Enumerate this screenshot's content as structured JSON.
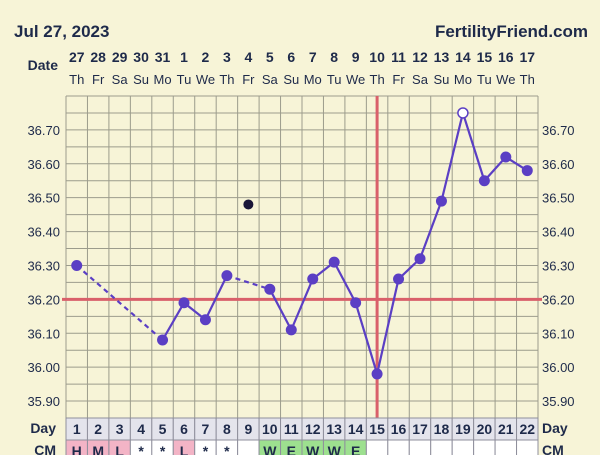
{
  "header": {
    "date": "Jul 27, 2023",
    "brand": "FertilityFriend.com"
  },
  "labels": {
    "date_row": "Date",
    "day_row": "Day",
    "cm_row": "CM"
  },
  "colors": {
    "background": "#f7f4d7",
    "line": "#5b3fc4",
    "coverline": "#d9606a",
    "ovulation_line": "#d9606a",
    "cm_red": "#f3b4c6",
    "cm_green": "#9de08f",
    "grid": "#9c9c8c"
  },
  "chart_data": {
    "type": "line",
    "date_numbers": [
      "27",
      "28",
      "29",
      "30",
      "31",
      "1",
      "2",
      "3",
      "4",
      "5",
      "6",
      "7",
      "8",
      "9",
      "10",
      "11",
      "12",
      "13",
      "14",
      "15",
      "16",
      "17"
    ],
    "weekdays": [
      "Th",
      "Fr",
      "Sa",
      "Su",
      "Mo",
      "Tu",
      "We",
      "Th",
      "Fr",
      "Sa",
      "Su",
      "Mo",
      "Tu",
      "We",
      "Th",
      "Fr",
      "Sa",
      "Su",
      "Mo",
      "Tu",
      "We",
      "Th"
    ],
    "cycle_days": [
      "1",
      "2",
      "3",
      "4",
      "5",
      "6",
      "7",
      "8",
      "9",
      "10",
      "11",
      "12",
      "13",
      "14",
      "15",
      "16",
      "17",
      "18",
      "19",
      "20",
      "21",
      "22"
    ],
    "cm": [
      "H",
      "M",
      "L",
      "*",
      "*",
      "L",
      "*",
      "*",
      "",
      "W",
      "E",
      "W",
      "W",
      "E",
      "",
      "",
      "",
      "",
      "",
      "",
      "",
      ""
    ],
    "cm_colors": [
      "red",
      "red",
      "red",
      "",
      "",
      "red",
      "",
      "",
      "",
      "green",
      "green",
      "green",
      "green",
      "green",
      "",
      "",
      "",
      "",
      "",
      "",
      "",
      ""
    ],
    "yticks": [
      "36.70",
      "36.60",
      "36.50",
      "36.40",
      "36.30",
      "36.20",
      "36.10",
      "36.00",
      "35.90"
    ],
    "ylim": [
      35.85,
      36.8
    ],
    "temps": [
      36.3,
      null,
      null,
      null,
      36.08,
      36.19,
      36.14,
      36.27,
      null,
      36.23,
      36.11,
      36.26,
      36.31,
      36.19,
      35.98,
      36.26,
      36.32,
      36.49,
      36.75,
      36.55,
      36.62,
      36.58
    ],
    "discarded_temp": {
      "day": 9,
      "value": 36.48
    },
    "open_point_day": 19,
    "coverline": 36.2,
    "ovulation_day": 15
  }
}
